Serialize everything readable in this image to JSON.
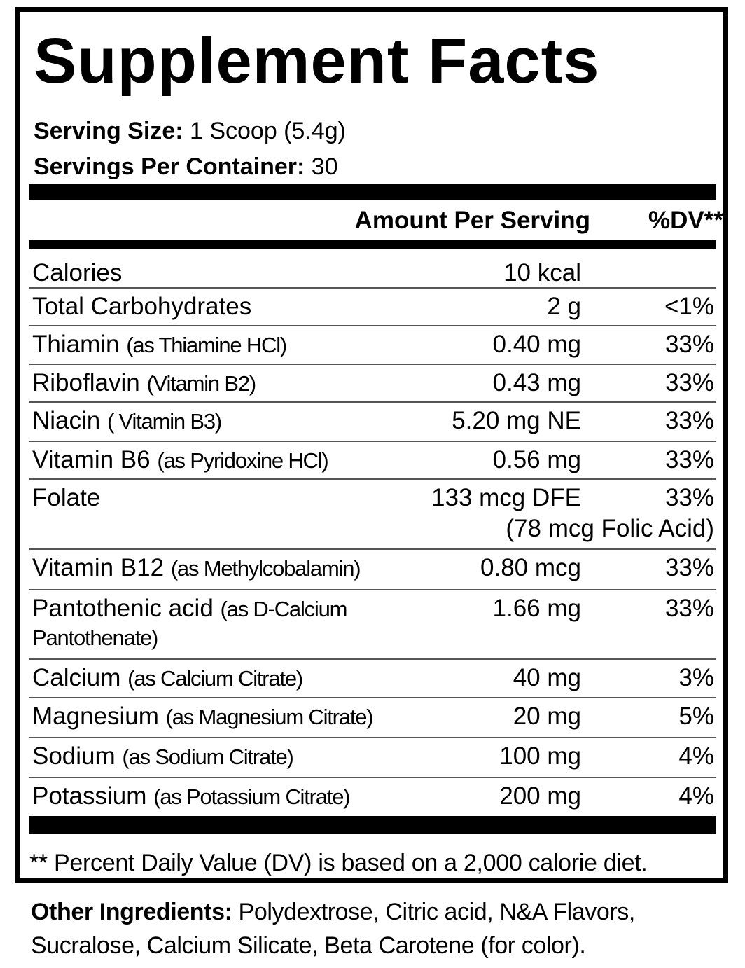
{
  "title": "Supplement Facts",
  "serving_size_label": "Serving Size:",
  "serving_size_value": "1 Scoop (5.4g)",
  "servings_per_container_label": "Servings Per Container:",
  "servings_per_container_value": "30",
  "header_amount": "Amount Per Serving",
  "header_dv": "%DV**",
  "rows": [
    {
      "name": "Calories",
      "sub": "",
      "amount": "10 kcal",
      "dv": ""
    },
    {
      "name": "Total Carbohydrates",
      "sub": "",
      "amount": "2 g",
      "dv": "<1%"
    },
    {
      "name": "Thiamin",
      "sub": "(as Thiamine HCl)",
      "amount": "0.40 mg",
      "dv": "33%"
    },
    {
      "name": "Riboflavin",
      "sub": "(Vitamin B2)",
      "amount": "0.43 mg",
      "dv": "33%"
    },
    {
      "name": "Niacin",
      "sub": "( Vitamin B3)",
      "amount": "5.20 mg NE",
      "dv": "33%"
    },
    {
      "name": "Vitamin B6",
      "sub": "(as Pyridoxine HCl)",
      "amount": "0.56 mg",
      "dv": "33%"
    },
    {
      "name": "Folate",
      "sub": "",
      "amount": "133 mcg DFE",
      "dv": "33%",
      "extra": "(78 mcg Folic Acid)"
    },
    {
      "name": "Vitamin B12",
      "sub": "(as Methylcobalamin)",
      "amount": "0.80 mcg",
      "dv": "33%"
    },
    {
      "name": "Pantothenic acid",
      "sub": "(as D-Calcium Pantothenate)",
      "amount": "1.66 mg",
      "dv": "33%"
    },
    {
      "name": "Calcium",
      "sub": "(as Calcium Citrate)",
      "amount": "40 mg",
      "dv": "3%"
    },
    {
      "name": "Magnesium",
      "sub": "(as Magnesium Citrate)",
      "amount": "20 mg",
      "dv": "5%"
    },
    {
      "name": "Sodium",
      "sub": "(as Sodium Citrate)",
      "amount": "100 mg",
      "dv": "4%"
    },
    {
      "name": "Potassium",
      "sub": "(as Potassium Citrate)",
      "amount": "200 mg",
      "dv": "4%"
    }
  ],
  "footnote": "** Percent Daily Value (DV) is based on a 2,000 calorie diet.",
  "other_ingredients_label": "Other Ingredients:",
  "other_ingredients_value": "Polydextrose, Citric acid, N&A Flavors, Sucralose, Calcium Silicate, Beta Carotene (for color)."
}
